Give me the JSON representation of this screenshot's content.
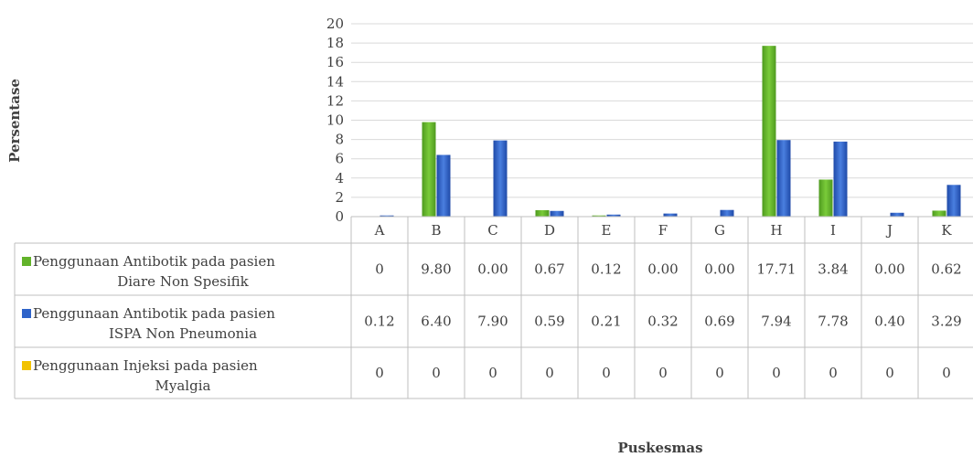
{
  "chart_data": {
    "type": "bar",
    "title": "",
    "xlabel": "Puskesmas",
    "ylabel": "Persentase",
    "ylim": [
      0,
      20
    ],
    "yticks": [
      0,
      2,
      4,
      6,
      8,
      10,
      12,
      14,
      16,
      18,
      20
    ],
    "grid": true,
    "legend": "data-table",
    "categories": [
      "A",
      "B",
      "C",
      "D",
      "E",
      "F",
      "G",
      "H",
      "I",
      "J",
      "K"
    ],
    "series": [
      {
        "name_line1": "Penggunaan Antibotik pada pasien",
        "name_line2": "Diare Non Spesifik",
        "color": "#62b32a",
        "values": [
          0,
          9.8,
          0.0,
          0.67,
          0.12,
          0.0,
          0.0,
          17.71,
          3.84,
          0.0,
          0.62
        ],
        "labels": [
          "0",
          "9.80",
          "0.00",
          "0.67",
          "0.12",
          "0.00",
          "0.00",
          "17.71",
          "3.84",
          "0.00",
          "0.62"
        ]
      },
      {
        "name_line1": "Penggunaan Antibotik pada pasien",
        "name_line2": "ISPA Non Pneumonia",
        "color": "#2e63c9",
        "values": [
          0.12,
          6.4,
          7.9,
          0.59,
          0.21,
          0.32,
          0.69,
          7.94,
          7.78,
          0.4,
          3.29
        ],
        "labels": [
          "0.12",
          "6.40",
          "7.90",
          "0.59",
          "0.21",
          "0.32",
          "0.69",
          "7.94",
          "7.78",
          "0.40",
          "3.29"
        ]
      },
      {
        "name_line1": "Penggunaan Injeksi pada pasien",
        "name_line2": "Myalgia",
        "color": "#f2c200",
        "values": [
          0,
          0,
          0,
          0,
          0,
          0,
          0,
          0,
          0,
          0,
          0
        ],
        "labels": [
          "0",
          "0",
          "0",
          "0",
          "0",
          "0",
          "0",
          "0",
          "0",
          "0",
          "0"
        ]
      }
    ]
  }
}
